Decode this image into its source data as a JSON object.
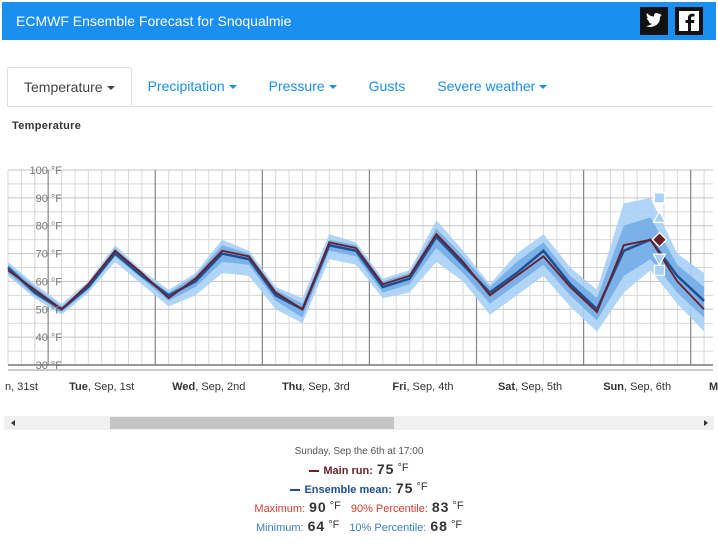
{
  "header": {
    "title": "ECMWF Ensemble Forecast for Snoqualmie"
  },
  "tabs": [
    {
      "label": "Temperature",
      "active": true,
      "dropdown": true
    },
    {
      "label": "Precipitation",
      "dropdown": true
    },
    {
      "label": "Pressure",
      "dropdown": true
    },
    {
      "label": "Gusts",
      "dropdown": false
    },
    {
      "label": "Severe weather",
      "dropdown": true
    }
  ],
  "section_title": "Temperature",
  "chart_data": {
    "type": "ensemble",
    "x": [
      "Aug 31 15:00",
      "Aug 31 21:00",
      "Sep 1 03:00",
      "Sep 1 09:00",
      "Sep 1 15:00",
      "Sep 1 21:00",
      "Sep 2 03:00",
      "Sep 2 09:00",
      "Sep 2 15:00",
      "Sep 2 21:00",
      "Sep 3 03:00",
      "Sep 3 09:00",
      "Sep 3 15:00",
      "Sep 3 21:00",
      "Sep 4 03:00",
      "Sep 4 09:00",
      "Sep 4 15:00",
      "Sep 4 21:00",
      "Sep 5 03:00",
      "Sep 5 09:00",
      "Sep 5 15:00",
      "Sep 5 21:00",
      "Sep 6 03:00",
      "Sep 6 09:00",
      "Sep 6 15:00",
      "Sep 6 21:00",
      "Sep 7 03:00"
    ],
    "series": [
      {
        "name": "Main run",
        "color": "#6b1f2a",
        "values": [
          64,
          57,
          50,
          59,
          71,
          63,
          54,
          61,
          71,
          69,
          56,
          50,
          74,
          72,
          59,
          62,
          77,
          67,
          55,
          62,
          69,
          58,
          49,
          73,
          75,
          60,
          50
        ]
      },
      {
        "name": "Ensemble mean",
        "color": "#1f4f8f",
        "values": [
          65,
          56,
          50,
          58,
          70,
          62,
          55,
          60,
          70,
          68,
          55,
          50,
          73,
          71,
          58,
          61,
          76,
          66,
          56,
          63,
          71,
          59,
          50,
          71,
          75,
          62,
          53
        ]
      }
    ],
    "bands": [
      {
        "upper": {
          "name": "Maximum",
          "values": [
            67,
            59,
            52,
            60,
            73,
            64,
            57,
            63,
            75,
            71,
            58,
            54,
            77,
            74,
            61,
            64,
            82,
            71,
            59,
            70,
            77,
            65,
            57,
            88,
            90,
            70,
            63
          ]
        },
        "lower": {
          "name": "Minimum",
          "values": [
            62,
            54,
            48,
            56,
            67,
            59,
            51,
            55,
            63,
            62,
            50,
            45,
            68,
            66,
            54,
            56,
            67,
            60,
            48,
            55,
            62,
            51,
            42,
            56,
            64,
            52,
            42
          ]
        },
        "color": "#a9d0f5"
      },
      {
        "upper": {
          "name": "90% Percentile",
          "values": [
            66,
            58,
            51,
            59,
            72,
            63,
            56,
            62,
            73,
            70,
            57,
            52,
            75,
            73,
            60,
            63,
            79,
            69,
            58,
            67,
            74,
            62,
            54,
            80,
            83,
            66,
            58
          ]
        },
        "lower": {
          "name": "10% Percentile",
          "values": [
            63,
            55,
            49,
            57,
            69,
            61,
            53,
            58,
            67,
            66,
            53,
            47,
            71,
            69,
            56,
            59,
            72,
            63,
            52,
            59,
            66,
            55,
            46,
            62,
            68,
            56,
            47
          ]
        },
        "color": "#6ea7e6"
      }
    ],
    "xlim": [
      "Aug 31 15:00",
      "Sep 7 05:00"
    ],
    "xticks": [
      {
        "value": "Aug 31 12:00",
        "label": "n, 31st"
      },
      {
        "value": "Sep 1 12:00",
        "day": "Tue",
        "label": ", Sep, 1st"
      },
      {
        "value": "Sep 2 12:00",
        "day": "Wed",
        "label": ", Sep, 2nd"
      },
      {
        "value": "Sep 3 12:00",
        "day": "Thu",
        "label": ", Sep, 3rd"
      },
      {
        "value": "Sep 4 12:00",
        "day": "Fri",
        "label": ", Sep, 4th"
      },
      {
        "value": "Sep 5 12:00",
        "day": "Sat",
        "label": ", Sep, 5th"
      },
      {
        "value": "Sep 6 12:00",
        "day": "Sun",
        "label": ", Sep, 6th"
      },
      {
        "value": "Sep 7 12:00",
        "day": "M"
      }
    ],
    "day_lines": [
      "Sep 1 00:00",
      "Sep 2 00:00",
      "Sep 3 00:00",
      "Sep 4 00:00",
      "Sep 5 00:00",
      "Sep 6 00:00",
      "Sep 7 00:00"
    ],
    "ylim": [
      30,
      100
    ],
    "yticks": [
      {
        "value": 30,
        "label": "30 °F"
      },
      {
        "value": 40,
        "label": "40 °F"
      },
      {
        "value": 50,
        "label": "50 °F"
      },
      {
        "value": 60,
        "label": "60 °F"
      },
      {
        "value": 70,
        "label": "70 °F"
      },
      {
        "value": 80,
        "label": "80 °F"
      },
      {
        "value": 90,
        "label": "90 °F"
      },
      {
        "value": 100,
        "label": "100 °F"
      }
    ],
    "grid": true
  },
  "tooltip": {
    "title": "Sunday, Sep the 6th at 17:00",
    "x": "Sep 6 17:00",
    "rows": [
      [
        {
          "label": "Main run:",
          "value": 75,
          "unit": "°F",
          "color": "#6b1f2a",
          "line": true
        }
      ],
      [
        {
          "label": "Ensemble mean:",
          "value": 75,
          "unit": "°F",
          "color": "#1f4f8f",
          "line": true
        }
      ],
      [
        {
          "label": "Maximum:",
          "value": 90,
          "unit": "°F",
          "color": "#d63b2f"
        },
        {
          "label": "90% Percentile:",
          "value": 83,
          "unit": "°F",
          "color": "#d63b2f"
        }
      ],
      [
        {
          "label": "Minimum:",
          "value": 64,
          "unit": "°F",
          "color": "#3c7fc0"
        },
        {
          "label": "10% Percentile:",
          "value": 68,
          "unit": "°F",
          "color": "#3c7fc0"
        }
      ]
    ]
  }
}
